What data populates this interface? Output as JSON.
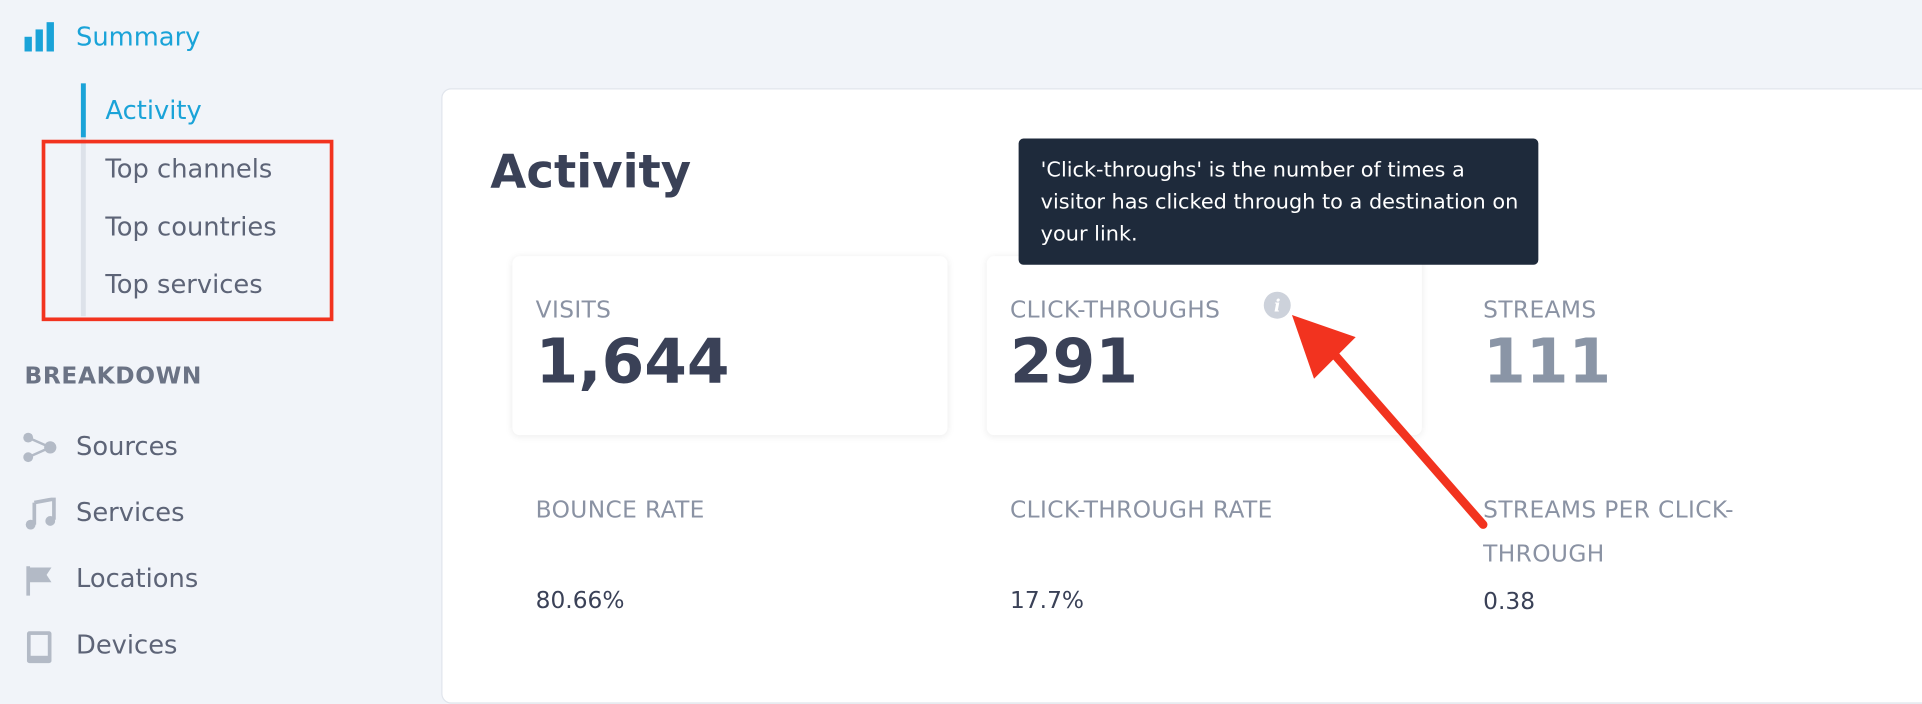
{
  "sidebar": {
    "summary": "Summary",
    "items": [
      "Activity",
      "Top channels",
      "Top countries",
      "Top services"
    ],
    "breakdown_heading": "BREAKDOWN",
    "breakdown": [
      "Sources",
      "Services",
      "Locations",
      "Devices"
    ]
  },
  "main": {
    "title": "Activity",
    "tooltip": "'Click-throughs' is the number of times a visitor has clicked through to a destination on your link.",
    "metrics": [
      {
        "label": "VISITS",
        "value": "1,644"
      },
      {
        "label": "CLICK-THROUGHS",
        "value": "291"
      },
      {
        "label": "STREAMS",
        "value": "111"
      }
    ],
    "rates": [
      {
        "label": "BOUNCE RATE",
        "value": "80.66%"
      },
      {
        "label": "CLICK-THROUGH RATE",
        "value": "17.7%"
      },
      {
        "label": "STREAMS PER CLICK-THROUGH",
        "value": "0.38"
      }
    ]
  }
}
